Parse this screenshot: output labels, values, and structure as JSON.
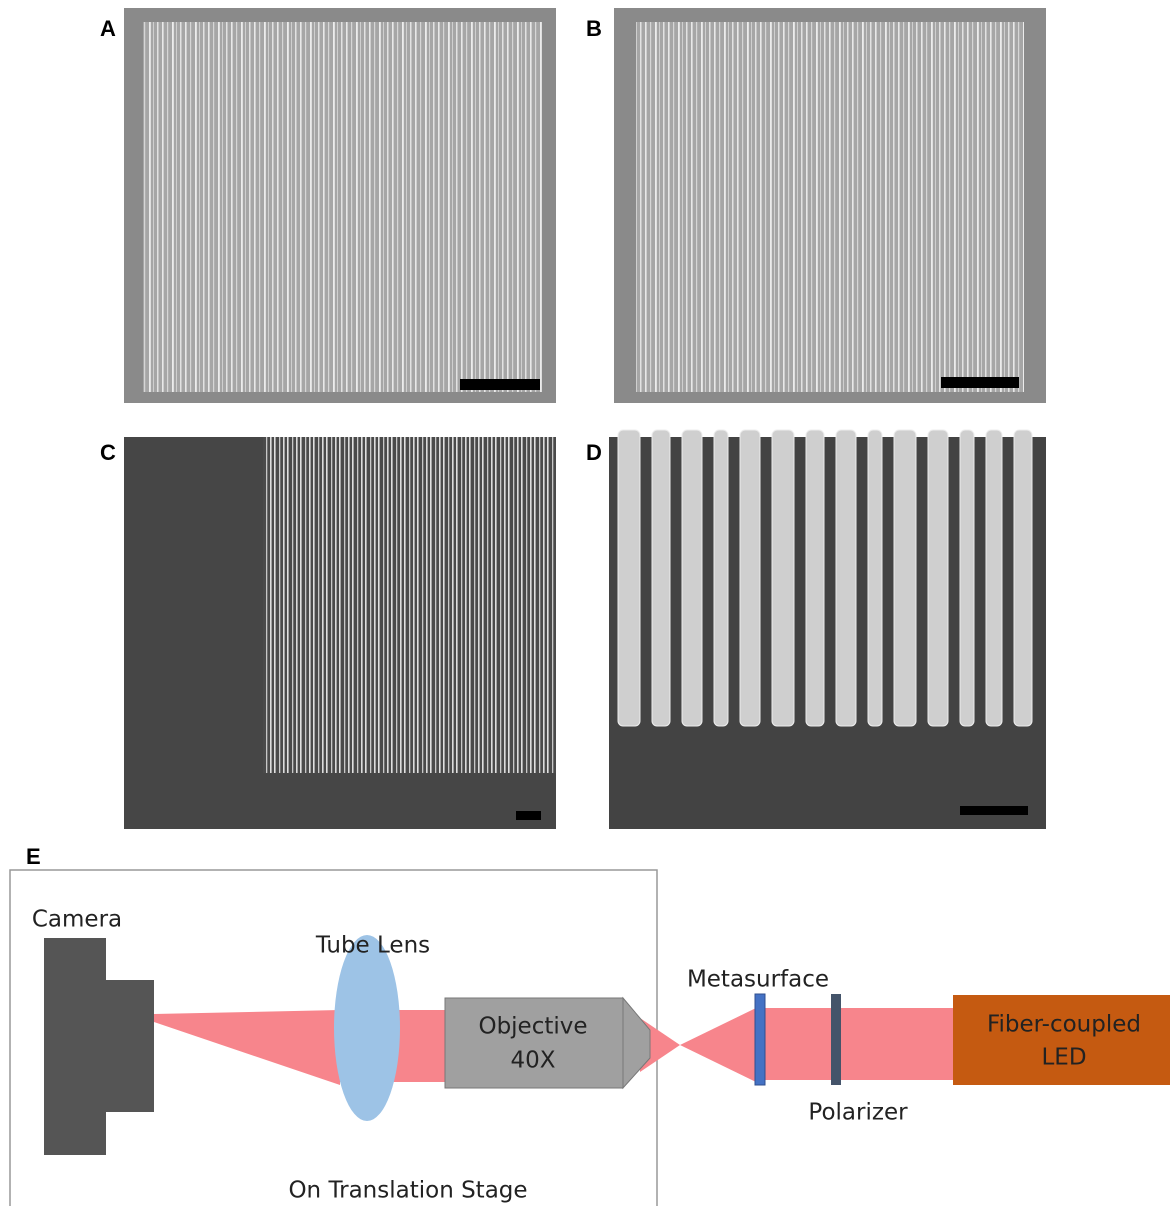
{
  "panels": {
    "a": "A",
    "b": "B",
    "c": "C",
    "d": "D",
    "e": "E"
  },
  "diagram": {
    "camera": "Camera",
    "tube_lens": "Tube Lens",
    "objective": [
      "Objective",
      "40X"
    ],
    "metasurface": "Metasurface",
    "polarizer": "Polarizer",
    "led": [
      "Fiber-coupled",
      "LED"
    ],
    "stage": "On Translation Stage"
  }
}
